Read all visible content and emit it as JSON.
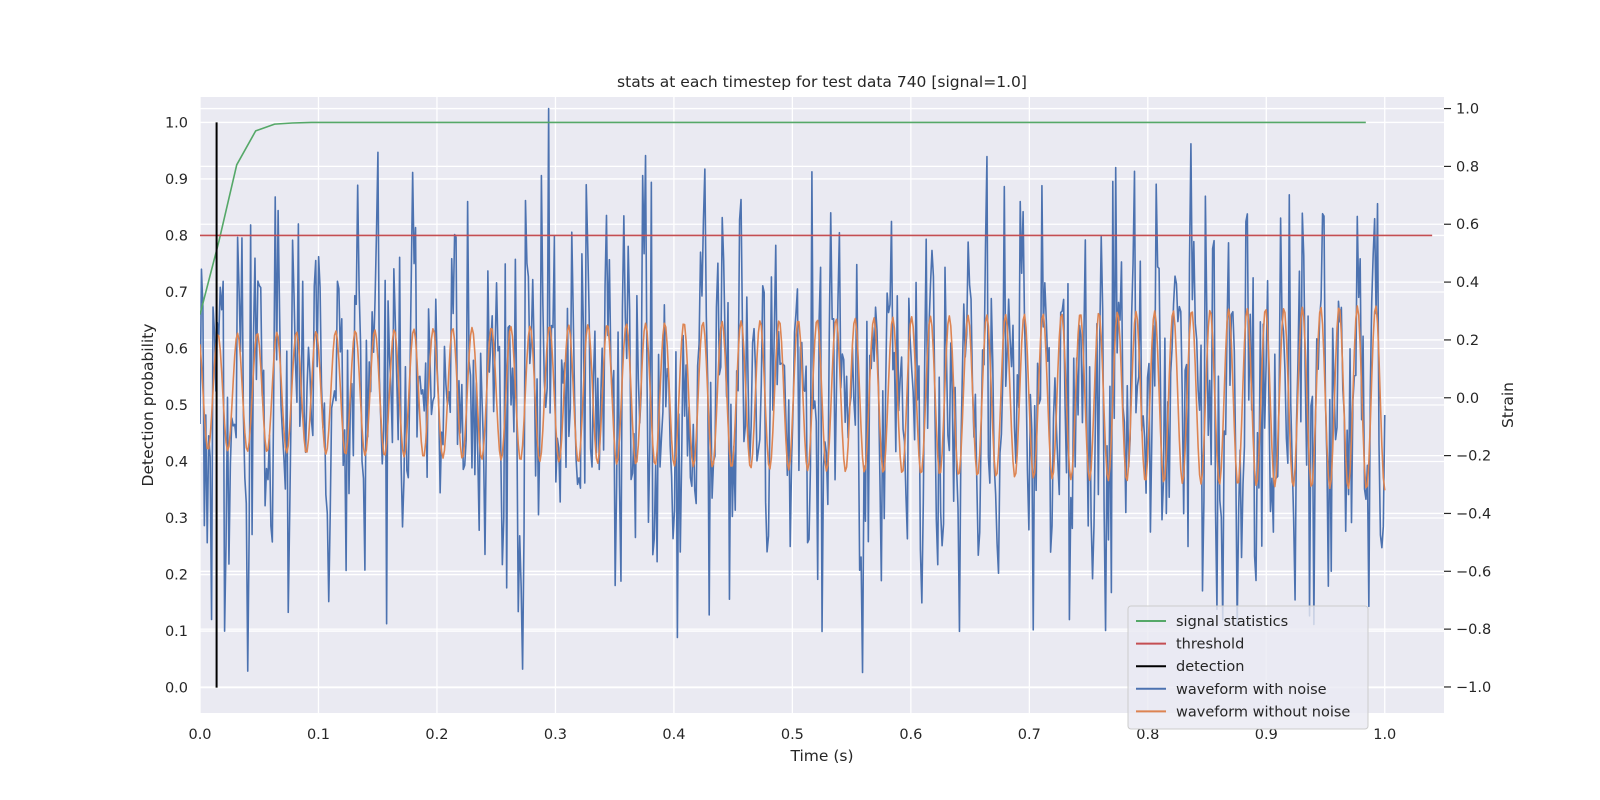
{
  "chart_data": {
    "type": "line",
    "title": "stats at each timestep for test data 740 [signal=1.0]",
    "xlabel": "Time (s)",
    "ylabel_left": "Detection probability",
    "ylabel_right": "Strain",
    "xlim": [
      0.0,
      1.05
    ],
    "ylim_left": [
      -0.045,
      1.045
    ],
    "ylim_right": [
      -1.09,
      1.04
    ],
    "x_ticks": [
      0.0,
      0.1,
      0.2,
      0.3,
      0.4,
      0.5,
      0.6,
      0.7,
      0.8,
      0.9,
      1.0
    ],
    "x_tick_labels": [
      "0.0",
      "0.1",
      "0.2",
      "0.3",
      "0.4",
      "0.5",
      "0.6",
      "0.7",
      "0.8",
      "0.9",
      "1.0"
    ],
    "y_left_ticks": [
      0.0,
      0.1,
      0.2,
      0.3,
      0.4,
      0.5,
      0.6,
      0.7,
      0.8,
      0.9,
      1.0
    ],
    "y_left_tick_labels": [
      "0.0",
      "0.1",
      "0.2",
      "0.3",
      "0.4",
      "0.5",
      "0.6",
      "0.7",
      "0.8",
      "0.9",
      "1.0"
    ],
    "y_right_ticks": [
      -1.0,
      -0.8,
      -0.6,
      -0.4,
      -0.2,
      0.0,
      0.2,
      0.4,
      0.6,
      0.8,
      1.0
    ],
    "y_right_tick_labels": [
      "−1.0",
      "−0.8",
      "−0.6",
      "−0.4",
      "−0.2",
      "0.0",
      "0.2",
      "0.4",
      "0.6",
      "0.8",
      "1.0"
    ],
    "grid": true,
    "legend_position": "lower-right",
    "style": {
      "background": "#eaeaf2",
      "grid_color": "#ffffff"
    },
    "series": [
      {
        "name": "signal statistics",
        "axis": "left",
        "color": "#55a868",
        "x": [
          0.0,
          0.016,
          0.031,
          0.047,
          0.063,
          0.078,
          0.094,
          0.2,
          0.4,
          0.6,
          0.8,
          0.984
        ],
        "y": [
          0.66,
          0.79,
          0.925,
          0.985,
          0.997,
          0.999,
          1.0,
          1.0,
          1.0,
          1.0,
          1.0,
          1.0
        ]
      },
      {
        "name": "threshold",
        "axis": "left",
        "color": "#c44e52",
        "x": [
          0.0,
          1.04
        ],
        "y": [
          0.8,
          0.8
        ]
      },
      {
        "name": "detection",
        "axis": "left",
        "color": "#000000",
        "x": [
          0.014,
          0.014
        ],
        "y": [
          0.0,
          1.0
        ]
      },
      {
        "name": "waveform with noise",
        "axis": "right",
        "color": "#4c72b0",
        "x_range": [
          0.0,
          1.0
        ],
        "samples": 820,
        "noise_std": 0.3,
        "peak_max": 1.0,
        "peak_min": -0.95
      },
      {
        "name": "waveform without noise",
        "axis": "right",
        "color": "#dd8452",
        "x_range": [
          0.0,
          1.0
        ],
        "samples": 820,
        "form": "chirp",
        "cycles": 60,
        "amplitude_start": 0.2,
        "amplitude_end": 0.32,
        "center_start": 0.0,
        "center_end": -0.02
      }
    ]
  }
}
